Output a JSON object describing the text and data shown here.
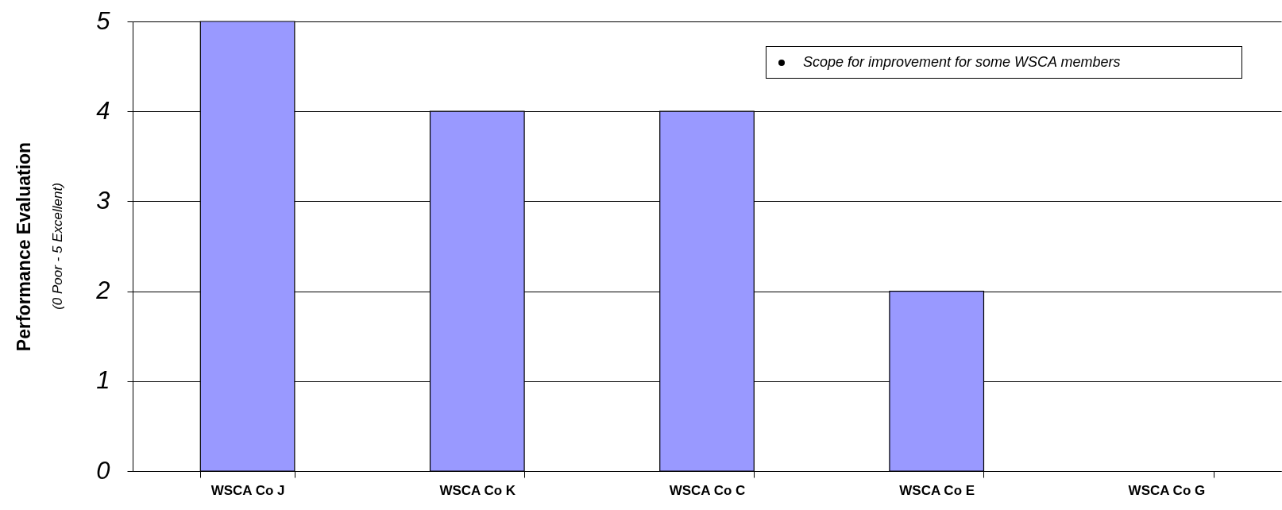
{
  "chart_data": {
    "type": "bar",
    "ylabel": "Performance Evaluation",
    "categories": [
      "WSCA Co J",
      "WSCA Co K",
      "WSCA Co C",
      "WSCA Co E",
      "WSCA Co G"
    ],
    "values": [
      5,
      4,
      4,
      2,
      0
    ],
    "color": "#9999ff",
    "ylim": [
      0,
      5
    ],
    "yticks": [
      0,
      1,
      2,
      3,
      4,
      5
    ],
    "grid": "y",
    "annotations": [
      "Scope for improvement for some WSCA members",
      "(0 Poor - 5 Excellent)"
    ]
  }
}
